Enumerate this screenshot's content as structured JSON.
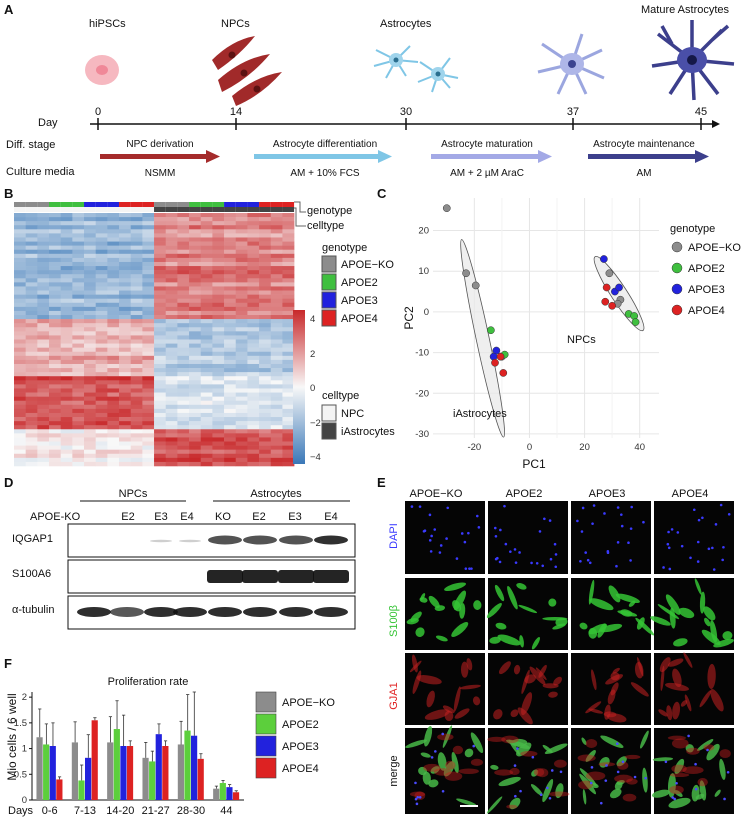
{
  "panel_labels": {
    "a": "A",
    "b": "B",
    "c": "C",
    "d": "D",
    "e": "E",
    "f": "F"
  },
  "panelA": {
    "stages": [
      "hiPSCs",
      "NPCs",
      "Astrocytes",
      "Mature Astrocytes"
    ],
    "day_label": "Day",
    "days": [
      "0",
      "14",
      "30",
      "37",
      "45"
    ],
    "diff_stage_label": "Diff. stage",
    "culture_media_label": "Culture media",
    "steps": [
      {
        "name": "NPC derivation",
        "media": "NSMM",
        "color": "#a52b2b"
      },
      {
        "name": "Astrocyte differentiation",
        "media": "AM + 10% FCS",
        "color": "#7fc6e6"
      },
      {
        "name": "Astrocyte maturation",
        "media": "AM + 2 µM AraC",
        "color": "#a3a9e6"
      },
      {
        "name": "Astrocyte maintenance",
        "media": "AM",
        "color": "#3c3f8c"
      }
    ]
  },
  "panelB": {
    "row_labels": [
      "genotype",
      "celltype"
    ],
    "genotype_title": "genotype",
    "celltype_title": "celltype",
    "colorbar_ticks": [
      "4",
      "2",
      "0",
      "−2",
      "−4"
    ],
    "genotypes": [
      {
        "name": "APOE−KO",
        "color": "#8c8c8c"
      },
      {
        "name": "APOE2",
        "color": "#3fbf3f"
      },
      {
        "name": "APOE3",
        "color": "#2222dd"
      },
      {
        "name": "APOE4",
        "color": "#dd2222"
      }
    ],
    "celltypes": [
      {
        "name": "NPC",
        "color": "#f4f4f4"
      },
      {
        "name": "iAstrocytes",
        "color": "#444444"
      }
    ]
  },
  "panelC": {
    "chart_data": {
      "type": "scatter",
      "xlabel": "PC1",
      "ylabel": "PC2",
      "xlim": [
        -35,
        47
      ],
      "ylim": [
        -31,
        28
      ],
      "xticks": [
        -20,
        0,
        20,
        40
      ],
      "yticks": [
        -30,
        -20,
        -10,
        0,
        10,
        20
      ],
      "grid": true,
      "legend_title": "genotype",
      "legend_position": "right",
      "annotations": [
        "NPCs",
        "iAstrocytes"
      ],
      "series": [
        {
          "name": "APOE−KO",
          "color": "#8c8c8c",
          "points": [
            [
              -30,
              25.5
            ],
            [
              -23,
              9.5
            ],
            [
              -19.5,
              6.5
            ],
            [
              -10,
              -11
            ],
            [
              29,
              9.5
            ],
            [
              33,
              3
            ],
            [
              32,
              2
            ]
          ]
        },
        {
          "name": "APOE2",
          "color": "#3fbf3f",
          "points": [
            [
              -14,
              -4.5
            ],
            [
              -9,
              -10.5
            ],
            [
              36,
              -0.5
            ],
            [
              38,
              -1
            ],
            [
              38.5,
              -2.5
            ]
          ]
        },
        {
          "name": "APOE3",
          "color": "#2222dd",
          "points": [
            [
              -12,
              -9.5
            ],
            [
              -13,
              -11
            ],
            [
              27,
              13
            ],
            [
              31,
              5
            ],
            [
              32.5,
              6
            ]
          ]
        },
        {
          "name": "APOE4",
          "color": "#dd2222",
          "points": [
            [
              -10.5,
              -11
            ],
            [
              -9.5,
              -15
            ],
            [
              -12.5,
              -12.5
            ],
            [
              28,
              6
            ],
            [
              27.5,
              2.5
            ],
            [
              30,
              1.5
            ]
          ]
        }
      ]
    }
  },
  "panelD": {
    "group_labels": [
      "NPCs",
      "Astrocytes"
    ],
    "lane_header_prefix": "APOE-KO",
    "lanes": [
      "E2",
      "E3",
      "E4",
      "KO",
      "E2",
      "E3",
      "E4"
    ],
    "blots": [
      "IQGAP1",
      "S100A6",
      "α-tubulin"
    ]
  },
  "panelE": {
    "columns": [
      "APOE−KO",
      "APOE2",
      "APOE3",
      "APOE4"
    ],
    "rows": [
      {
        "label": "DAPI",
        "color": "#3a3aff"
      },
      {
        "label": "S100β",
        "color": "#35c435"
      },
      {
        "label": "GJA1",
        "color": "#e02525"
      },
      {
        "label": "merge",
        "color": "#222222"
      }
    ]
  },
  "panelF": {
    "chart_data": {
      "type": "bar",
      "title": "Proliferation rate",
      "ylabel": "Mio cells / 6 well",
      "xlabel": "Days",
      "categories": [
        "0-6",
        "7-13",
        "14-20",
        "21-27",
        "28-30",
        "44"
      ],
      "ylim": [
        0,
        2.1
      ],
      "yticks": [
        0,
        0.5,
        1,
        1.5,
        2
      ],
      "legend_position": "right",
      "series": [
        {
          "name": "APOE−KO",
          "color": "#8c8c8c",
          "values": [
            1.22,
            1.12,
            1.12,
            0.82,
            1.08,
            0.22
          ]
        },
        {
          "name": "APOE2",
          "color": "#5ccf3c",
          "values": [
            1.08,
            0.38,
            1.38,
            0.75,
            1.35,
            0.33
          ]
        },
        {
          "name": "APOE3",
          "color": "#2222dd",
          "values": [
            1.05,
            0.82,
            1.05,
            1.28,
            1.25,
            0.25
          ]
        },
        {
          "name": "APOE4",
          "color": "#dd2222",
          "values": [
            0.4,
            1.55,
            1.05,
            1.05,
            0.8,
            0.15
          ]
        }
      ],
      "errors": [
        [
          0.55,
          0.4,
          0.5,
          0.3,
          0.45,
          0.05
        ],
        [
          0.4,
          0.3,
          0.55,
          0.2,
          0.7,
          0.05
        ],
        [
          0.45,
          0.45,
          0.6,
          0.2,
          0.85,
          0.05
        ],
        [
          0.05,
          0.05,
          0.1,
          0.1,
          0.1,
          0.03
        ]
      ]
    }
  }
}
